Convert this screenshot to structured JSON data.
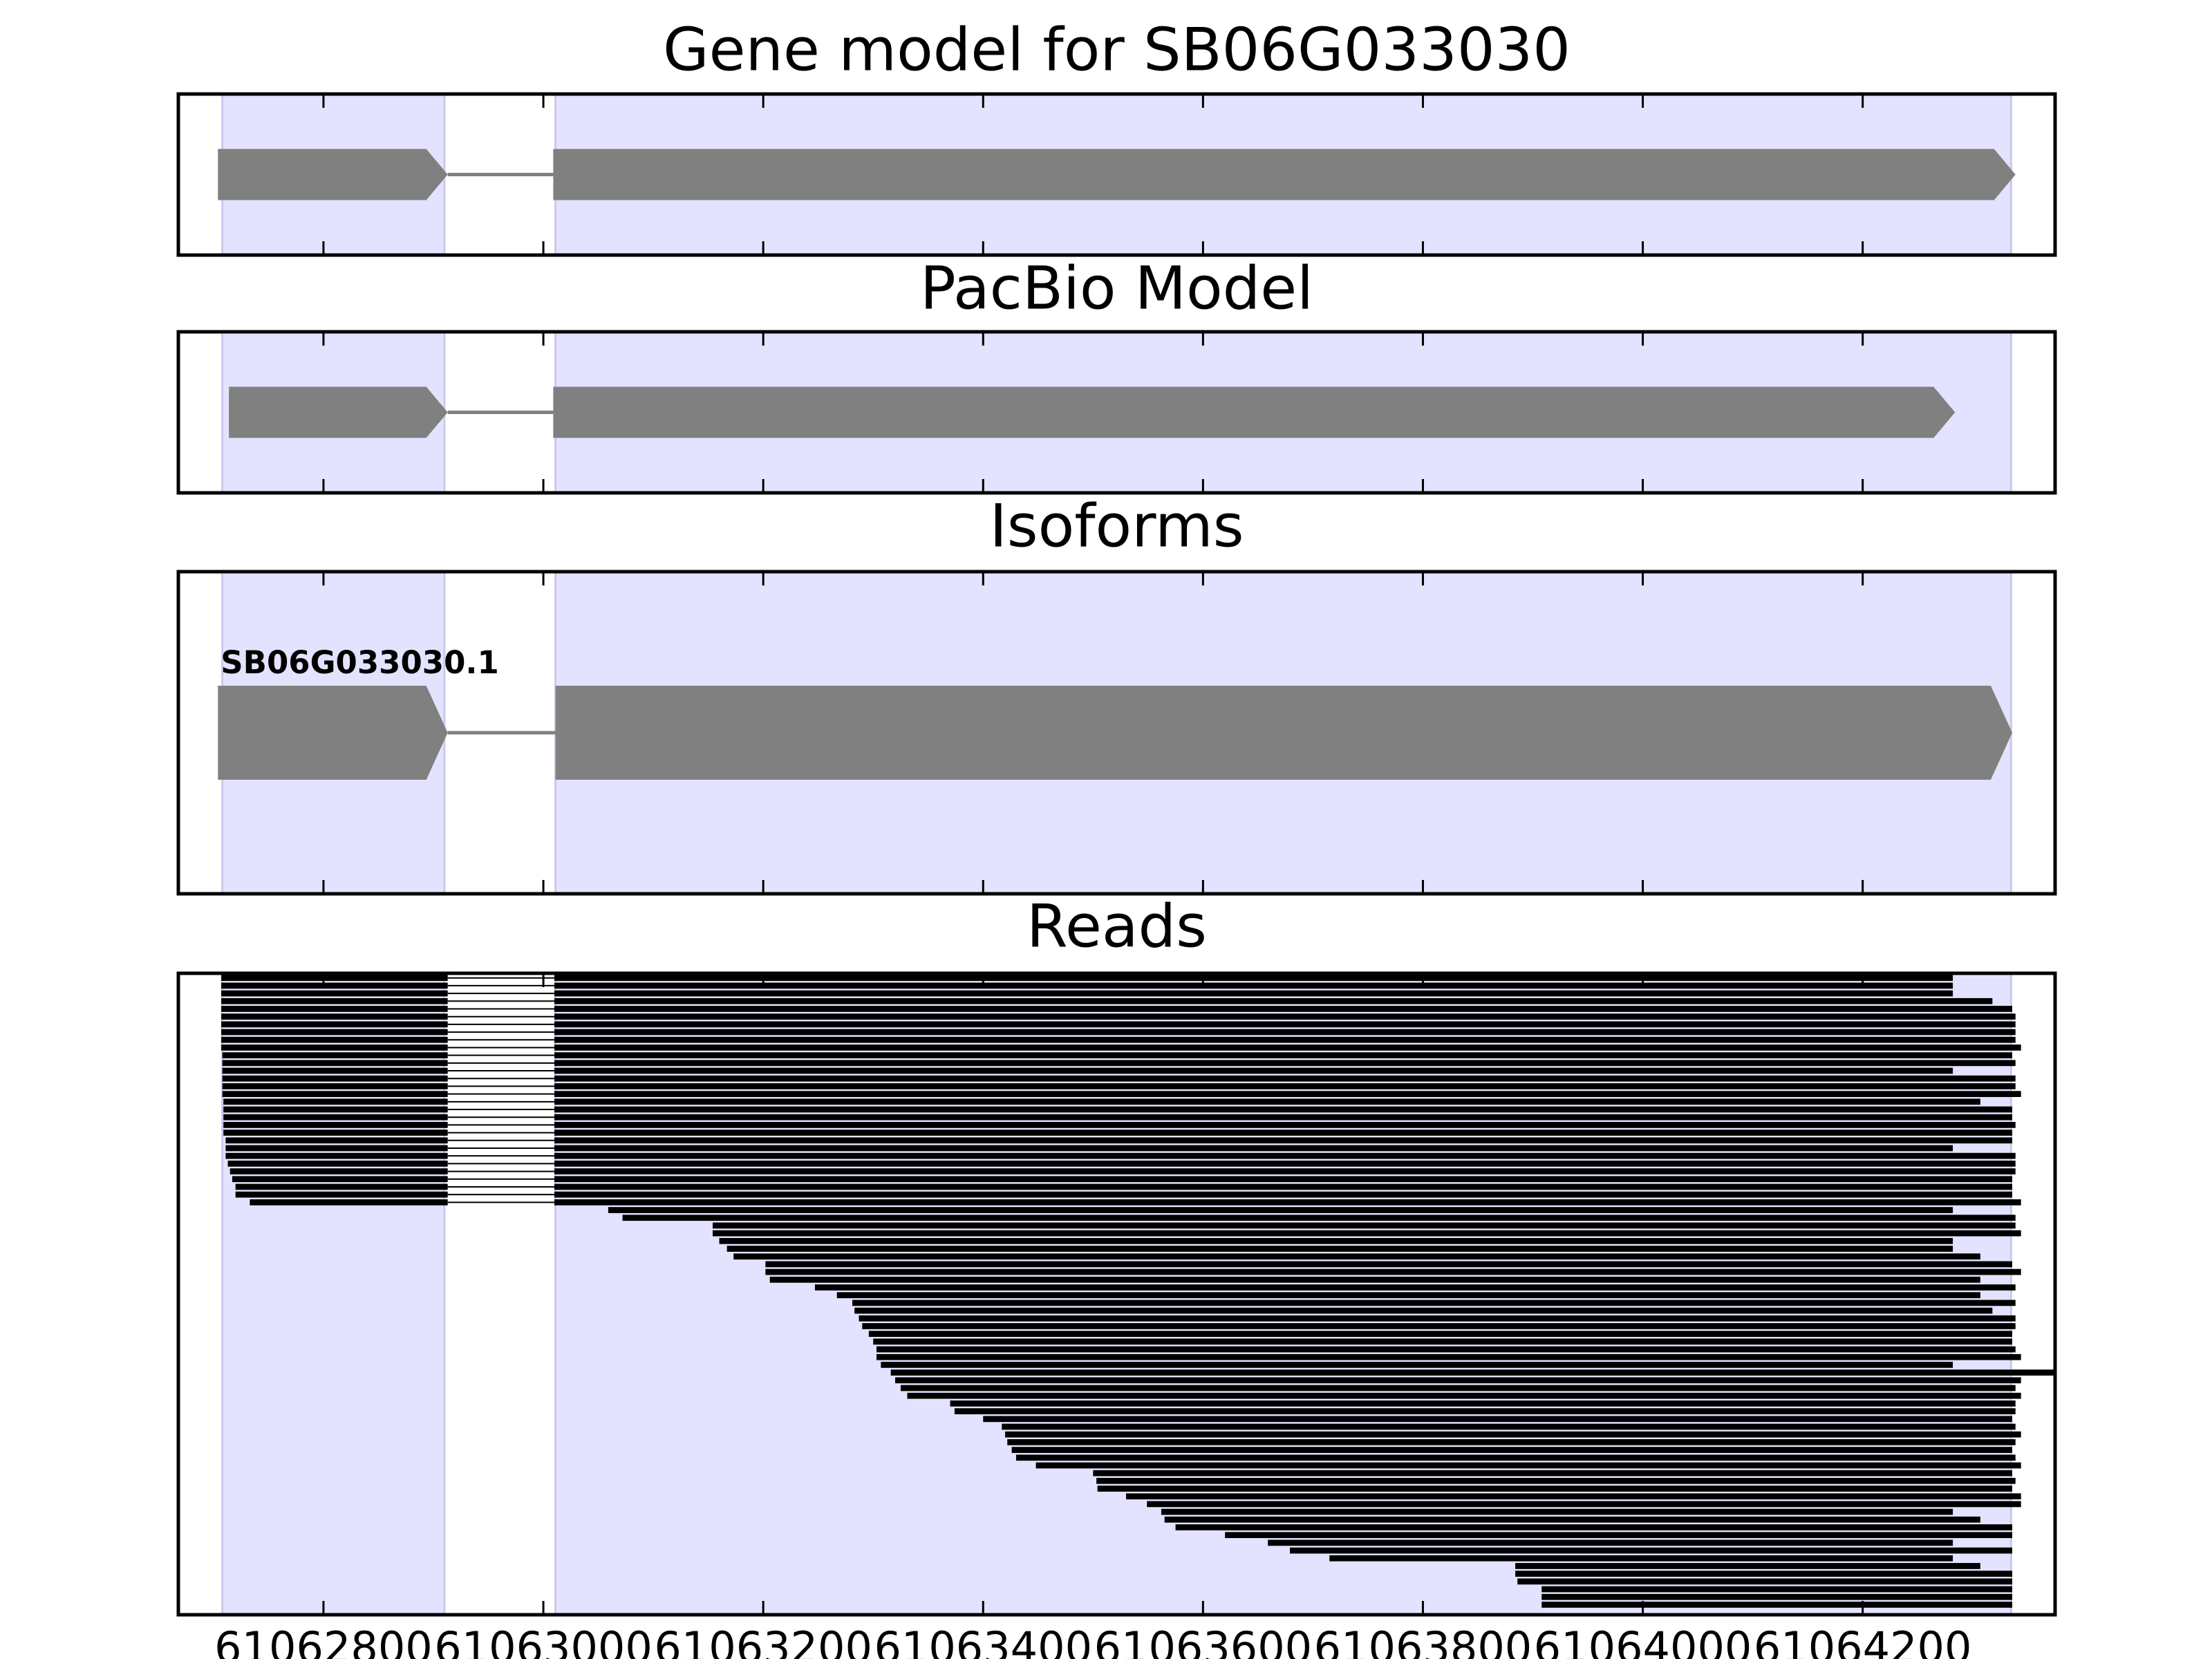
{
  "chart_data": {
    "type": "gene-track",
    "xlim": [
      61062668,
      61064375
    ],
    "xticks": [
      61062800,
      61063000,
      61063200,
      61063400,
      61063600,
      61063800,
      61064000,
      61064200
    ],
    "regions": [
      [
        61062708,
        61062910
      ],
      [
        61063011,
        61064335
      ]
    ],
    "region_color": "#e3e3ff",
    "panels": [
      {
        "type": "gene",
        "title": "Gene model for SB06G033030",
        "color": "#808080",
        "exons": [
          [
            61062704,
            61062913
          ],
          [
            61063009,
            61064339
          ]
        ]
      },
      {
        "type": "gene",
        "title": "PacBio Model",
        "color": "#808080",
        "exons": [
          [
            61062714,
            61062913
          ],
          [
            61063009,
            61064284
          ]
        ]
      },
      {
        "type": "gene",
        "title": "Isoforms",
        "label": "SB06G033030.1",
        "color": "#808080",
        "exons": [
          [
            61062704,
            61062913
          ],
          [
            61063011,
            61064336
          ]
        ]
      },
      {
        "type": "reads",
        "title": "Reads",
        "color": "#000000",
        "intron": [
          61062913,
          61063010
        ],
        "starts": [
          61062707,
          61062707,
          61062707,
          61062707,
          61062707,
          61062707,
          61062707,
          61062707,
          61062707,
          61062707,
          61062708,
          61062708,
          61062708,
          61062708,
          61062708,
          61062708,
          61062709,
          61062709,
          61062709,
          61062709,
          61062709,
          61062711,
          61062711,
          61062711,
          61062713,
          61062715,
          61062717,
          61062720,
          61062720,
          61062733,
          61063059,
          61063072,
          61063154,
          61063154,
          61063160,
          61063167,
          61063173,
          61063202,
          61063202,
          61063206,
          61063247,
          61063267,
          61063281,
          61063283,
          61063287,
          61063290,
          61063296,
          61063300,
          61063303,
          61063303,
          61063307,
          61063316,
          61063320,
          61063325,
          61063331,
          61063370,
          61063374,
          61063400,
          61063417,
          61063420,
          61063422,
          61063426,
          61063430,
          61063448,
          61063500,
          61063503,
          61063504,
          61063530,
          61063549,
          61063562,
          61063565,
          61063575,
          61063620,
          61063659,
          61063679,
          61063715,
          61063884,
          61063884,
          61063886,
          61063908,
          61063908,
          61063908
        ],
        "ends": [
          61064282,
          61064282,
          61064282,
          61064318,
          61064336,
          61064339,
          61064339,
          61064339,
          61064339,
          61064344,
          61064336,
          61064339,
          61064282,
          61064339,
          61064339,
          61064344,
          61064307,
          61064336,
          61064336,
          61064339,
          61064336,
          61064336,
          61064282,
          61064339,
          61064339,
          61064339,
          61064336,
          61064336,
          61064336,
          61064344,
          61064282,
          61064339,
          61064339,
          61064344,
          61064282,
          61064282,
          61064307,
          61064336,
          61064344,
          61064307,
          61064339,
          61064307,
          61064339,
          61064318,
          61064339,
          61064339,
          61064336,
          61064336,
          61064339,
          61064344,
          61064282,
          61064400,
          61064344,
          61064339,
          61064344,
          61064339,
          61064339,
          61064336,
          61064339,
          61064344,
          61064339,
          61064336,
          61064339,
          61064344,
          61064336,
          61064339,
          61064336,
          61064344,
          61064344,
          61064282,
          61064307,
          61064336,
          61064336,
          61064282,
          61064336,
          61064282,
          61064307,
          61064336,
          61064336,
          61064336,
          61064336,
          61064336
        ]
      }
    ]
  }
}
